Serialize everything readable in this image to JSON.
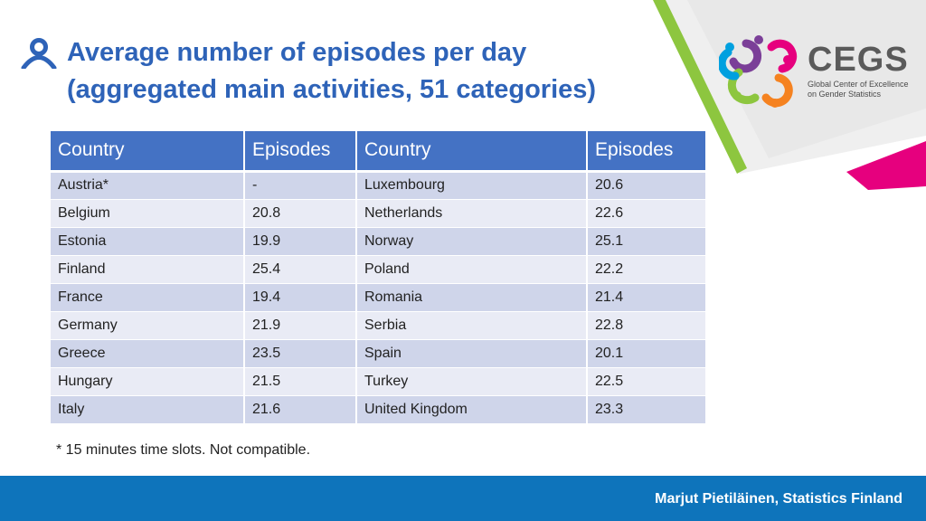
{
  "title": {
    "line1": "Average number of episodes per day",
    "line2": "(aggregated main activities, 51 categories)"
  },
  "logo": {
    "name": "CEGS",
    "subtitle_line1": "Global Center of Excellence",
    "subtitle_line2": "on Gender Statistics"
  },
  "table": {
    "headers": [
      "Country",
      "Episodes",
      "Country",
      "Episodes"
    ],
    "rows": [
      [
        "Austria*",
        "-",
        "Luxembourg",
        "20.6"
      ],
      [
        "Belgium",
        "20.8",
        "Netherlands",
        "22.6"
      ],
      [
        "Estonia",
        "19.9",
        "Norway",
        "25.1"
      ],
      [
        "Finland",
        "25.4",
        "Poland",
        "22.2"
      ],
      [
        "France",
        "19.4",
        "Romania",
        "21.4"
      ],
      [
        "Germany",
        "21.9",
        "Serbia",
        "22.8"
      ],
      [
        "Greece",
        "23.5",
        "Spain",
        "20.1"
      ],
      [
        "Hungary",
        "21.5",
        "Turkey",
        "22.5"
      ],
      [
        "Italy",
        "21.6",
        "United Kingdom",
        "23.3"
      ]
    ]
  },
  "footnote": "* 15 minutes time slots. Not compatible.",
  "footer": {
    "author": "Marjut Pietiläinen, Statistics Finland"
  },
  "colors": {
    "title": "#2e63b8",
    "header_bg": "#4472c4",
    "row_odd": "#cfd5ea",
    "row_even": "#e9ebf5",
    "footer_bg": "#0e74bb",
    "accent_green": "#8dc63f",
    "accent_magenta": "#e6007e"
  },
  "icons": [
    "person-icon",
    "cegs-logo-icon"
  ]
}
